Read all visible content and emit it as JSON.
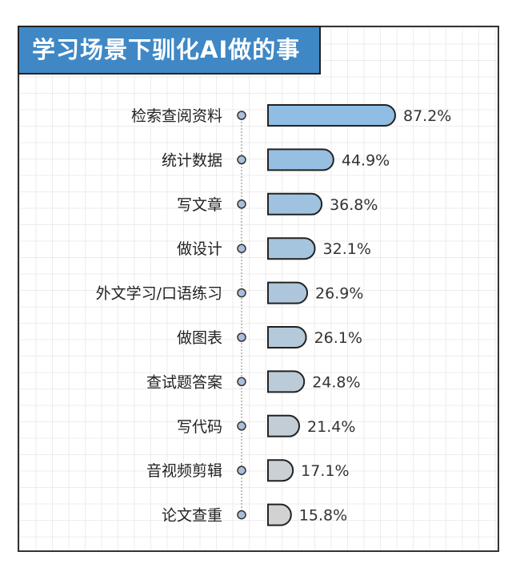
{
  "chart_data": {
    "type": "bar",
    "orientation": "horizontal",
    "title": "学习场景下驯化AI做的事",
    "categories": [
      "检索查阅资料",
      "统计数据",
      "写文章",
      "做设计",
      "外文学习/口语练习",
      "做图表",
      "查试题答案",
      "写代码",
      "音视频剪辑",
      "论文查重"
    ],
    "values": [
      87.2,
      44.9,
      36.8,
      32.1,
      26.9,
      26.1,
      24.8,
      21.4,
      17.1,
      15.8
    ],
    "value_labels": [
      "87.2%",
      "44.9%",
      "36.8%",
      "32.1%",
      "26.9%",
      "26.1%",
      "24.8%",
      "21.4%",
      "17.1%",
      "15.8%"
    ],
    "unit": "%",
    "grid": true,
    "colors": {
      "title_bg": "#3f88c5",
      "bar_high": "#8fbde3",
      "bar_low": "#d2d2d2",
      "dot": "#a9bedb",
      "stroke": "#222222"
    }
  }
}
